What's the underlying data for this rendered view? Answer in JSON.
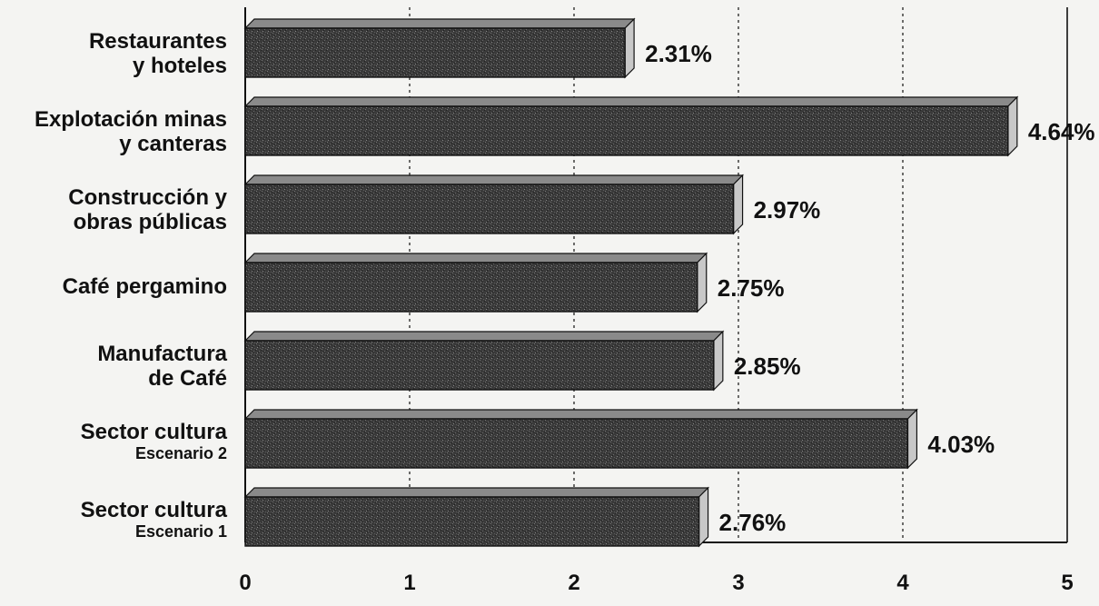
{
  "chart_data": {
    "type": "bar",
    "orientation": "horizontal",
    "categories": [
      {
        "line1": "Restaurantes",
        "line2": "y hoteles",
        "line2_small": false
      },
      {
        "line1": "Explotación minas",
        "line2": "y canteras",
        "line2_small": false
      },
      {
        "line1": "Construcción y",
        "line2": "obras públicas",
        "line2_small": false
      },
      {
        "line1": "Café pergamino",
        "line2": "",
        "line2_small": false
      },
      {
        "line1": "Manufactura",
        "line2": "de Café",
        "line2_small": false
      },
      {
        "line1": "Sector cultura",
        "line2": "Escenario 2",
        "line2_small": true
      },
      {
        "line1": "Sector cultura",
        "line2": "Escenario 1",
        "line2_small": true
      }
    ],
    "values": [
      2.31,
      4.64,
      2.97,
      2.75,
      2.85,
      4.03,
      2.76
    ],
    "value_labels": [
      "2.31%",
      "4.64%",
      "2.97%",
      "2.75%",
      "2.85%",
      "4.03%",
      "2.76%"
    ],
    "ticks": [
      0,
      1,
      2,
      3,
      4,
      5
    ],
    "tick_labels": [
      "0",
      "1",
      "2",
      "3",
      "4",
      "5"
    ],
    "xlim": [
      0,
      5
    ],
    "grid": "vertical dashed",
    "colors": {
      "bar_face": "#3a3a3a",
      "bar_top": "#8a8a8a",
      "bar_end": "#c8c8c8",
      "background": "#f4f4f2",
      "ink": "#111111"
    }
  }
}
